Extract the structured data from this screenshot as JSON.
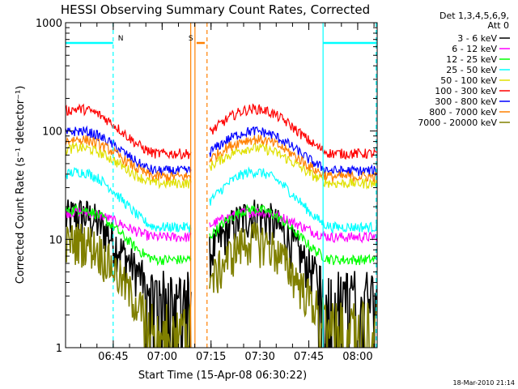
{
  "chart_data": {
    "type": "line",
    "title": "HESSI Observing Summary Count Rates, Corrected",
    "xlabel": "Start Time (15-Apr-08 06:30:22)",
    "ylabel": "Corrected Count Rate (s⁻¹ detector⁻¹)",
    "x_unit": "minutes after 06:30:22",
    "xlim": [
      0,
      95.6
    ],
    "ylim": [
      1,
      1000
    ],
    "yscale": "log",
    "x_ticks": [
      {
        "label": "06:45",
        "value": 14.63
      },
      {
        "label": "07:00",
        "value": 29.63
      },
      {
        "label": "07:15",
        "value": 44.63
      },
      {
        "label": "07:30",
        "value": 59.63
      },
      {
        "label": "07:45",
        "value": 74.63
      },
      {
        "label": "08:00",
        "value": 89.63
      }
    ],
    "y_ticks": [
      {
        "label": "1",
        "value": 1
      },
      {
        "label": "10",
        "value": 10
      },
      {
        "label": "100",
        "value": 100
      },
      {
        "label": "1000",
        "value": 1000
      }
    ],
    "legend_header": [
      "Det 1,3,4,5,6,9,",
      "Att 0"
    ],
    "legend_position": "right, outside plot",
    "series": [
      {
        "name": "3 - 6 keV",
        "color": "#000000",
        "base": 3.6,
        "peak": 17
      },
      {
        "name": "6 - 12 keV",
        "color": "#ff00ff",
        "base": 10.5,
        "peak": 18
      },
      {
        "name": "12 - 25 keV",
        "color": "#00ff00",
        "base": 6.5,
        "peak": 19
      },
      {
        "name": "25 - 50 keV",
        "color": "#00ffff",
        "base": 13,
        "peak": 42
      },
      {
        "name": "50 - 100 keV",
        "color": "#e0e000",
        "base": 33,
        "peak": 70
      },
      {
        "name": "100 - 300 keV",
        "color": "#ff0000",
        "base": 62,
        "peak": 160
      },
      {
        "name": "300 - 800 keV",
        "color": "#0000ff",
        "base": 43,
        "peak": 100
      },
      {
        "name": "800 - 7000 keV",
        "color": "#ff8000",
        "base": 38,
        "peak": 84
      },
      {
        "name": "7000 - 20000 keV",
        "color": "#808000",
        "base": 1.8,
        "peak": 10
      }
    ],
    "segments": [
      {
        "start": 0,
        "end": 38.5,
        "peak_at": 4
      },
      {
        "start": 44.2,
        "end": 95.6,
        "peak_at": 58
      }
    ],
    "markers": [
      {
        "label": "N",
        "color": "#00ffff",
        "x_start": 0,
        "x_end": 14.6,
        "value": 650
      },
      {
        "label": "N",
        "color": "#00ffff",
        "x_start": 79,
        "x_end": 95.6,
        "value": 650
      },
      {
        "label": "S",
        "color": "#ff8000",
        "x_start": 40.2,
        "x_end": 42.7,
        "value": 650
      }
    ],
    "vertical_lines": [
      {
        "x": 14.6,
        "color": "#00ffff",
        "style": "dashed"
      },
      {
        "x": 79,
        "color": "#00ffff",
        "style": "solid"
      },
      {
        "x": 95.3,
        "color": "#00ffff",
        "style": "dashed"
      },
      {
        "x": 38.4,
        "color": "#ff8000",
        "style": "solid"
      },
      {
        "x": 39.7,
        "color": "#ff8000",
        "style": "solid"
      },
      {
        "x": 43.4,
        "color": "#ff8000",
        "style": "dashed"
      }
    ]
  },
  "timestamp": "18-Mar-2010 21:14"
}
